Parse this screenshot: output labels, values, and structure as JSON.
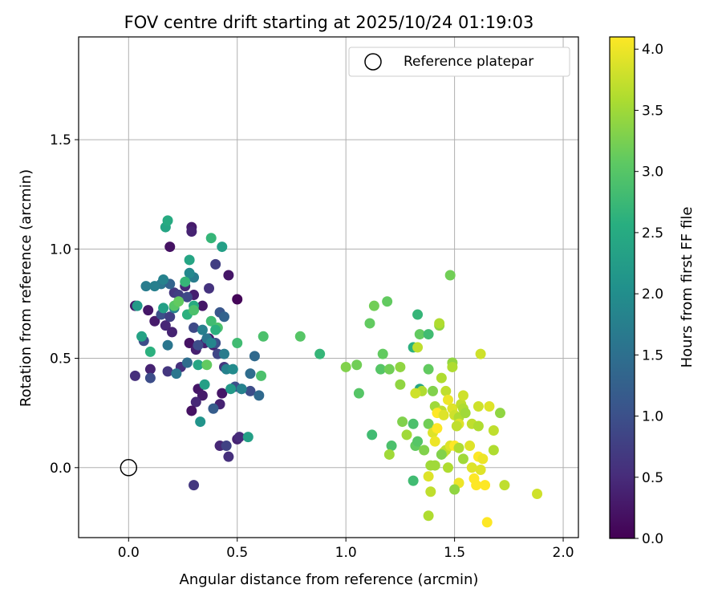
{
  "chart_data": {
    "type": "scatter",
    "title": "FOV centre drift starting at 2025/10/24 01:19:03",
    "xlabel": "Angular distance from reference (arcmin)",
    "ylabel": "Rotation from reference (arcmin)",
    "xlim": [
      -0.23,
      2.07
    ],
    "ylim": [
      -0.32,
      1.97
    ],
    "xticks": [
      0.0,
      0.5,
      1.0,
      1.5,
      2.0
    ],
    "xtick_labels": [
      "0.0",
      "0.5",
      "1.0",
      "1.5",
      "2.0"
    ],
    "yticks": [
      0.0,
      0.5,
      1.0,
      1.5
    ],
    "ytick_labels": [
      "0.0",
      "0.5",
      "1.0",
      "1.5"
    ],
    "grid": true,
    "legend": {
      "position": "top-right",
      "entries": [
        "Reference platepar"
      ]
    },
    "reference_point": {
      "x": 0.0,
      "y": 0.0
    },
    "colorbar": {
      "label": "Hours from first FF file",
      "colormap": "viridis",
      "range": [
        0.0,
        4.1
      ],
      "ticks": [
        0.0,
        0.5,
        1.0,
        1.5,
        2.0,
        2.5,
        3.0,
        3.5,
        4.0
      ],
      "tick_labels": [
        "0.0",
        "0.5",
        "1.0",
        "1.5",
        "2.0",
        "2.5",
        "3.0",
        "3.5",
        "4.0"
      ]
    },
    "points": [
      [
        0.29,
        1.1,
        0.3
      ],
      [
        0.29,
        1.08,
        0.4
      ],
      [
        0.19,
        1.01,
        0.2
      ],
      [
        0.46,
        0.88,
        0.25
      ],
      [
        0.5,
        0.77,
        0.05
      ],
      [
        0.03,
        0.74,
        0.3
      ],
      [
        0.09,
        0.72,
        0.25
      ],
      [
        0.12,
        0.67,
        0.3
      ],
      [
        0.17,
        0.65,
        0.45
      ],
      [
        0.2,
        0.62,
        0.4
      ],
      [
        0.3,
        0.79,
        0.35
      ],
      [
        0.34,
        0.74,
        0.25
      ],
      [
        0.37,
        0.82,
        0.6
      ],
      [
        0.4,
        0.93,
        0.75
      ],
      [
        0.26,
        0.83,
        0.45
      ],
      [
        0.35,
        0.57,
        0.35
      ],
      [
        0.37,
        0.59,
        0.3
      ],
      [
        0.39,
        0.56,
        0.35
      ],
      [
        0.28,
        0.57,
        0.2
      ],
      [
        0.31,
        0.54,
        0.35
      ],
      [
        0.03,
        0.42,
        0.55
      ],
      [
        0.18,
        0.44,
        0.65
      ],
      [
        0.24,
        0.46,
        0.55
      ],
      [
        0.32,
        0.36,
        0.25
      ],
      [
        0.34,
        0.33,
        0.3
      ],
      [
        0.31,
        0.3,
        0.45
      ],
      [
        0.29,
        0.26,
        0.2
      ],
      [
        0.42,
        0.1,
        0.45
      ],
      [
        0.46,
        0.05,
        0.55
      ],
      [
        0.5,
        0.13,
        0.4
      ],
      [
        0.51,
        0.14,
        0.5
      ],
      [
        0.3,
        -0.08,
        0.65
      ],
      [
        0.1,
        0.45,
        0.4
      ],
      [
        0.42,
        0.29,
        0.4
      ],
      [
        0.43,
        0.34,
        0.25
      ],
      [
        0.45,
        0.1,
        0.8
      ],
      [
        0.07,
        0.58,
        0.95
      ],
      [
        0.1,
        0.41,
        0.95
      ],
      [
        0.15,
        0.7,
        1.0
      ],
      [
        0.19,
        0.69,
        0.75
      ],
      [
        0.21,
        0.8,
        0.65
      ],
      [
        0.23,
        0.79,
        0.75
      ],
      [
        0.27,
        0.78,
        0.9
      ],
      [
        0.3,
        0.64,
        0.9
      ],
      [
        0.32,
        0.56,
        0.95
      ],
      [
        0.4,
        0.57,
        1.0
      ],
      [
        0.42,
        0.71,
        1.1
      ],
      [
        0.44,
        0.69,
        1.3
      ],
      [
        0.41,
        0.52,
        0.85
      ],
      [
        0.44,
        0.46,
        0.65
      ],
      [
        0.49,
        0.37,
        1.0
      ],
      [
        0.52,
        0.36,
        0.85
      ],
      [
        0.56,
        0.35,
        0.95
      ],
      [
        0.6,
        0.33,
        1.4
      ],
      [
        0.58,
        0.51,
        1.4
      ],
      [
        0.56,
        0.43,
        1.45
      ],
      [
        0.39,
        0.27,
        1.2
      ],
      [
        0.27,
        0.48,
        1.45
      ],
      [
        0.22,
        0.43,
        1.6
      ],
      [
        0.18,
        0.56,
        1.6
      ],
      [
        0.08,
        0.83,
        1.7
      ],
      [
        0.15,
        0.84,
        1.6
      ],
      [
        0.19,
        0.84,
        1.3
      ],
      [
        0.16,
        0.86,
        1.8
      ],
      [
        0.3,
        0.87,
        1.7
      ],
      [
        0.28,
        0.89,
        1.9
      ],
      [
        0.12,
        0.83,
        1.75
      ],
      [
        0.21,
        0.73,
        1.8
      ],
      [
        0.34,
        0.63,
        1.75
      ],
      [
        0.36,
        0.59,
        1.6
      ],
      [
        0.38,
        0.57,
        1.85
      ],
      [
        0.44,
        0.52,
        1.7
      ],
      [
        0.45,
        0.45,
        1.8
      ],
      [
        0.48,
        0.45,
        1.95
      ],
      [
        0.52,
        0.36,
        1.8
      ],
      [
        0.47,
        0.36,
        2.2
      ],
      [
        0.35,
        0.38,
        2.3
      ],
      [
        0.32,
        0.47,
        2.4
      ],
      [
        0.33,
        0.21,
        2.1
      ],
      [
        0.55,
        0.14,
        2.3
      ],
      [
        0.04,
        0.74,
        2.2
      ],
      [
        0.06,
        0.6,
        2.35
      ],
      [
        0.1,
        0.53,
        2.6
      ],
      [
        0.16,
        0.73,
        2.3
      ],
      [
        0.17,
        1.1,
        2.4
      ],
      [
        0.18,
        1.13,
        2.5
      ],
      [
        0.26,
        0.85,
        2.7
      ],
      [
        0.28,
        0.95,
        2.4
      ],
      [
        0.3,
        0.74,
        2.5
      ],
      [
        0.27,
        0.7,
        2.6
      ],
      [
        0.38,
        0.67,
        2.8
      ],
      [
        0.41,
        0.64,
        2.9
      ],
      [
        0.4,
        0.63,
        2.6
      ],
      [
        0.38,
        1.05,
        2.7
      ],
      [
        0.43,
        1.01,
        2.3
      ],
      [
        0.5,
        0.57,
        2.8
      ],
      [
        0.62,
        0.6,
        2.9
      ],
      [
        0.61,
        0.42,
        2.9
      ],
      [
        0.79,
        0.6,
        3.0
      ],
      [
        0.88,
        0.52,
        2.7
      ],
      [
        0.21,
        0.74,
        3.0
      ],
      [
        0.23,
        0.76,
        3.1
      ],
      [
        0.3,
        0.72,
        2.9
      ],
      [
        0.36,
        0.47,
        3.1
      ],
      [
        1.0,
        0.46,
        3.3
      ],
      [
        1.05,
        0.47,
        3.2
      ],
      [
        1.06,
        0.34,
        3.0
      ],
      [
        1.11,
        0.66,
        3.1
      ],
      [
        1.13,
        0.74,
        3.2
      ],
      [
        1.19,
        0.76,
        3.1
      ],
      [
        1.17,
        0.52,
        3.1
      ],
      [
        1.16,
        0.45,
        3.0
      ],
      [
        1.2,
        0.45,
        3.2
      ],
      [
        1.25,
        0.46,
        3.4
      ],
      [
        1.12,
        0.15,
        2.8
      ],
      [
        1.21,
        0.1,
        2.9
      ],
      [
        1.2,
        0.06,
        3.5
      ],
      [
        1.25,
        0.38,
        3.4
      ],
      [
        1.26,
        0.21,
        3.3
      ],
      [
        1.28,
        0.15,
        3.5
      ],
      [
        1.31,
        0.55,
        2.6
      ],
      [
        1.33,
        0.55,
        3.7
      ],
      [
        1.33,
        0.7,
        2.7
      ],
      [
        1.34,
        0.61,
        3.1
      ],
      [
        1.38,
        0.61,
        2.8
      ],
      [
        1.34,
        0.36,
        2.4
      ],
      [
        1.35,
        0.35,
        3.6
      ],
      [
        1.32,
        0.34,
        3.8
      ],
      [
        1.31,
        0.2,
        2.9
      ],
      [
        1.32,
        0.1,
        3.1
      ],
      [
        1.33,
        0.12,
        3.0
      ],
      [
        1.31,
        -0.06,
        2.8
      ],
      [
        1.38,
        0.45,
        3.1
      ],
      [
        1.4,
        0.35,
        3.3
      ],
      [
        1.44,
        0.41,
        3.6
      ],
      [
        1.43,
        0.65,
        3.4
      ],
      [
        1.43,
        0.66,
        3.6
      ],
      [
        1.48,
        0.88,
        3.2
      ],
      [
        1.49,
        0.48,
        3.4
      ],
      [
        1.49,
        0.46,
        3.6
      ],
      [
        1.41,
        0.28,
        3.5
      ],
      [
        1.44,
        0.26,
        3.7
      ],
      [
        1.46,
        0.35,
        3.7
      ],
      [
        1.47,
        0.31,
        4.0
      ],
      [
        1.49,
        0.27,
        3.9
      ],
      [
        1.5,
        0.24,
        3.8
      ],
      [
        1.52,
        0.23,
        3.6
      ],
      [
        1.53,
        0.29,
        3.7
      ],
      [
        1.54,
        0.33,
        3.8
      ],
      [
        1.54,
        0.27,
        3.6
      ],
      [
        1.52,
        0.2,
        3.9
      ],
      [
        1.55,
        0.25,
        3.5
      ],
      [
        1.58,
        0.2,
        3.7
      ],
      [
        1.61,
        0.28,
        3.8
      ],
      [
        1.66,
        0.28,
        3.9
      ],
      [
        1.62,
        0.52,
        3.8
      ],
      [
        1.61,
        0.19,
        3.6
      ],
      [
        1.68,
        0.17,
        3.7
      ],
      [
        1.71,
        0.25,
        3.4
      ],
      [
        1.38,
        0.2,
        3.2
      ],
      [
        1.4,
        0.16,
        3.9
      ],
      [
        1.41,
        0.12,
        4.0
      ],
      [
        1.42,
        0.18,
        4.1
      ],
      [
        1.42,
        0.25,
        4.1
      ],
      [
        1.45,
        0.24,
        3.9
      ],
      [
        1.45,
        0.07,
        3.8
      ],
      [
        1.46,
        0.08,
        3.7
      ],
      [
        1.48,
        0.1,
        3.9
      ],
      [
        1.5,
        0.1,
        4.1
      ],
      [
        1.51,
        0.19,
        3.7
      ],
      [
        1.52,
        0.09,
        3.6
      ],
      [
        1.52,
        -0.07,
        4.0
      ],
      [
        1.57,
        0.1,
        3.9
      ],
      [
        1.59,
        -0.05,
        4.1
      ],
      [
        1.61,
        0.05,
        4.1
      ],
      [
        1.62,
        -0.01,
        3.9
      ],
      [
        1.63,
        0.04,
        4.0
      ],
      [
        1.64,
        -0.08,
        4.1
      ],
      [
        1.65,
        -0.25,
        4.1
      ],
      [
        1.68,
        0.08,
        3.6
      ],
      [
        1.73,
        -0.08,
        3.7
      ],
      [
        1.88,
        -0.12,
        3.8
      ],
      [
        1.38,
        -0.04,
        3.9
      ],
      [
        1.39,
        -0.11,
        3.7
      ],
      [
        1.38,
        -0.22,
        3.6
      ],
      [
        1.39,
        0.01,
        3.5
      ],
      [
        1.41,
        0.01,
        3.5
      ],
      [
        1.47,
        -0.0,
        3.6
      ],
      [
        1.5,
        -0.1,
        3.4
      ],
      [
        1.44,
        0.06,
        3.3
      ],
      [
        1.36,
        0.08,
        3.3
      ],
      [
        1.54,
        0.04,
        3.5
      ],
      [
        1.6,
        -0.08,
        4.1
      ],
      [
        1.58,
        0.0,
        3.9
      ]
    ]
  }
}
